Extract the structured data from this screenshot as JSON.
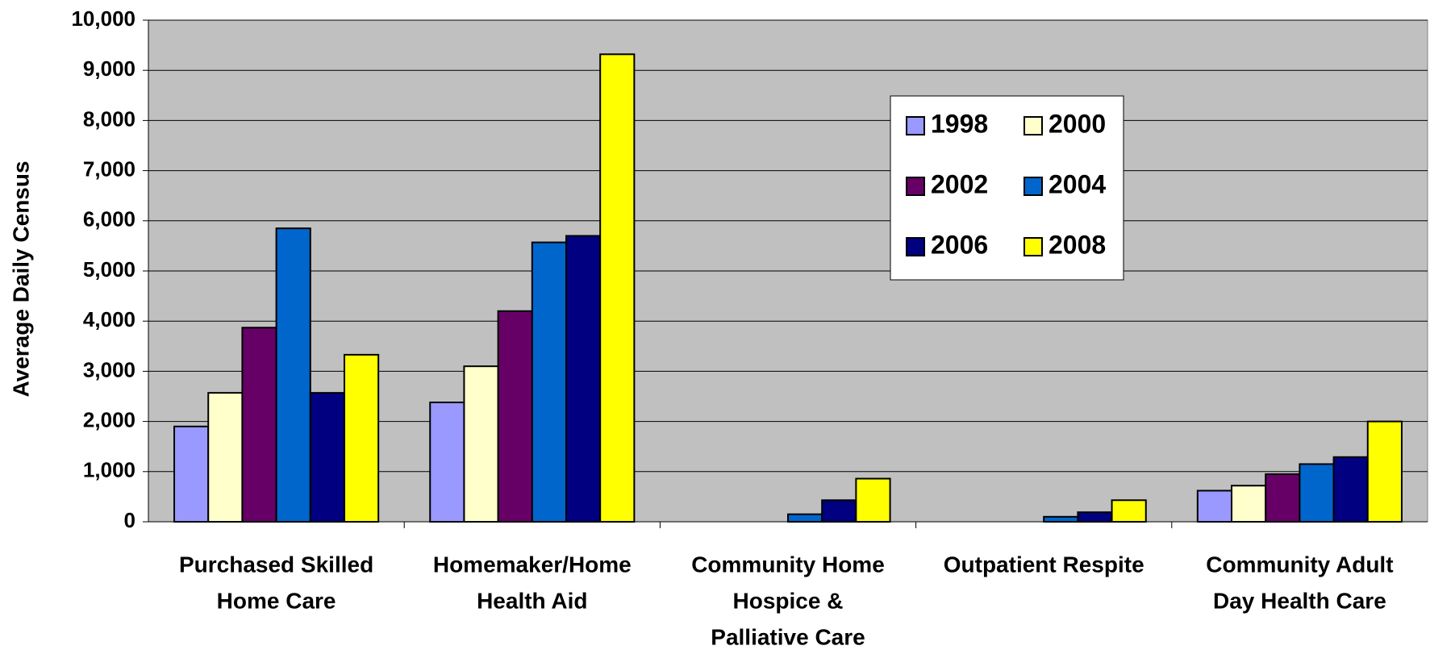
{
  "chart_data": {
    "type": "bar",
    "y_label": "Average Daily Census",
    "categories": [
      [
        "Purchased Skilled",
        "Home Care"
      ],
      [
        "Homemaker/Home",
        "Health Aid"
      ],
      [
        "Community Home",
        "Hospice &",
        "Palliative Care"
      ],
      [
        "Outpatient Respite"
      ],
      [
        "Community Adult",
        "Day Health Care"
      ]
    ],
    "series": [
      {
        "name": "1998",
        "color": "#9999ff",
        "values": [
          1900,
          2380,
          null,
          null,
          620
        ]
      },
      {
        "name": "2000",
        "color": "#ffffcc",
        "values": [
          2570,
          3100,
          null,
          null,
          720
        ]
      },
      {
        "name": "2002",
        "color": "#660066",
        "values": [
          3870,
          4200,
          null,
          null,
          950
        ]
      },
      {
        "name": "2004",
        "color": "#0066cc",
        "values": [
          5850,
          5570,
          150,
          100,
          1150
        ]
      },
      {
        "name": "2006",
        "color": "#000080",
        "values": [
          2570,
          5700,
          430,
          190,
          1290
        ]
      },
      {
        "name": "2008",
        "color": "#ffff00",
        "values": [
          3330,
          9320,
          860,
          430,
          2000
        ]
      }
    ],
    "ylim": [
      0,
      10000
    ],
    "yticks": [
      0,
      {
        "value": 1000,
        "label": "1,000"
      },
      {
        "value": 2000,
        "label": "2,000"
      },
      {
        "value": 3000,
        "label": "3,000"
      },
      {
        "value": 4000,
        "label": "4,000"
      },
      {
        "value": 5000,
        "label": "5,000"
      },
      {
        "value": 6000,
        "label": "6,000"
      },
      {
        "value": 7000,
        "label": "7,000"
      },
      {
        "value": 8000,
        "label": "8,000"
      },
      {
        "value": 9000,
        "label": "9,000"
      },
      {
        "value": 10000,
        "label": "10,000"
      }
    ],
    "grid": true,
    "plot_background": "#c0c0c0"
  }
}
